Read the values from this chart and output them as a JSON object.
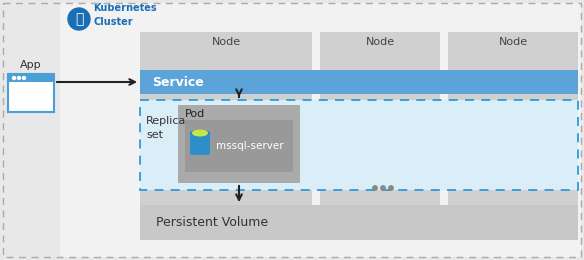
{
  "bg_color": "#e8e8e8",
  "k8s_bg_color": "#f2f2f2",
  "k8s_label": "Kubernetes\nCluster",
  "k8s_icon_color": "#1a6eb5",
  "node_bg_color": "#d0d0d0",
  "node_label": "Node",
  "node_label_color": "#444444",
  "service_bg_color": "#5ba3d9",
  "service_label": "Service",
  "replica_bg_color": "#daeef8",
  "replica_border_color": "#2e9bd4",
  "replica_label": "Replica\nset",
  "pod_bg_color": "#aaaaaa",
  "pod_label": "Pod",
  "mssql_bg_color": "#999999",
  "mssql_label": "mssql-server",
  "mssql_cyl_color": "#2d8fc7",
  "mssql_cap_color": "#c8e64a",
  "pv_bg_color": "#c8c8c8",
  "pv_label": "Persistent Volume",
  "app_label": "App",
  "app_box_border": "#4a9fd4",
  "app_box_fill": "#ffffff",
  "app_bar_color": "#4a9fd4",
  "dots_color": "#888888",
  "arrow_color": "#222222",
  "outer_border_color": "#aaaaaa"
}
